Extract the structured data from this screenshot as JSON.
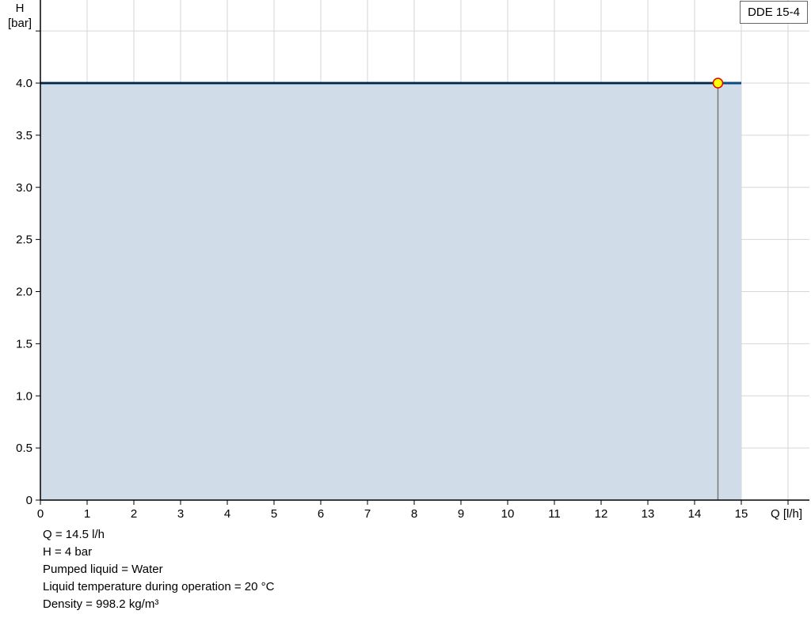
{
  "chart_data": {
    "type": "area",
    "xlabel": "Q [l/h]",
    "ylabel_line1": "H",
    "ylabel_line2": "[bar]",
    "xlim": [
      0,
      16
    ],
    "ylim": [
      0,
      4.5
    ],
    "x_ticks": [
      0,
      1,
      2,
      3,
      4,
      5,
      6,
      7,
      8,
      9,
      10,
      11,
      12,
      13,
      14,
      15,
      16
    ],
    "x_tick_labels": [
      "0",
      "1",
      "2",
      "3",
      "4",
      "5",
      "6",
      "7",
      "8",
      "9",
      "10",
      "11",
      "12",
      "13",
      "14",
      "15"
    ],
    "y_ticks": [
      0,
      0.5,
      1.0,
      1.5,
      2.0,
      2.5,
      3.0,
      3.5,
      4.0,
      4.5
    ],
    "y_tick_labels": [
      "0",
      "0.5",
      "1.0",
      "1.5",
      "2.0",
      "2.5",
      "3.0",
      "3.5",
      "4.0"
    ],
    "grid": true,
    "series": [
      {
        "name": "DDE 15-4",
        "x": [
          0,
          15
        ],
        "y": [
          4,
          4
        ],
        "color": "#0a4a80",
        "fill": "#d0dce7"
      }
    ],
    "operating_point": {
      "x": 14.5,
      "y": 4,
      "color": "#ffff00",
      "stroke": "#e00000"
    },
    "legend": {
      "label": "DDE 15-4",
      "placement": "top-right"
    }
  },
  "info": [
    "Q = 14.5 l/h",
    "H = 4 bar",
    "Pumped liquid = Water",
    "Liquid temperature during operation = 20 °C",
    "Density = 998.2 kg/m³"
  ]
}
